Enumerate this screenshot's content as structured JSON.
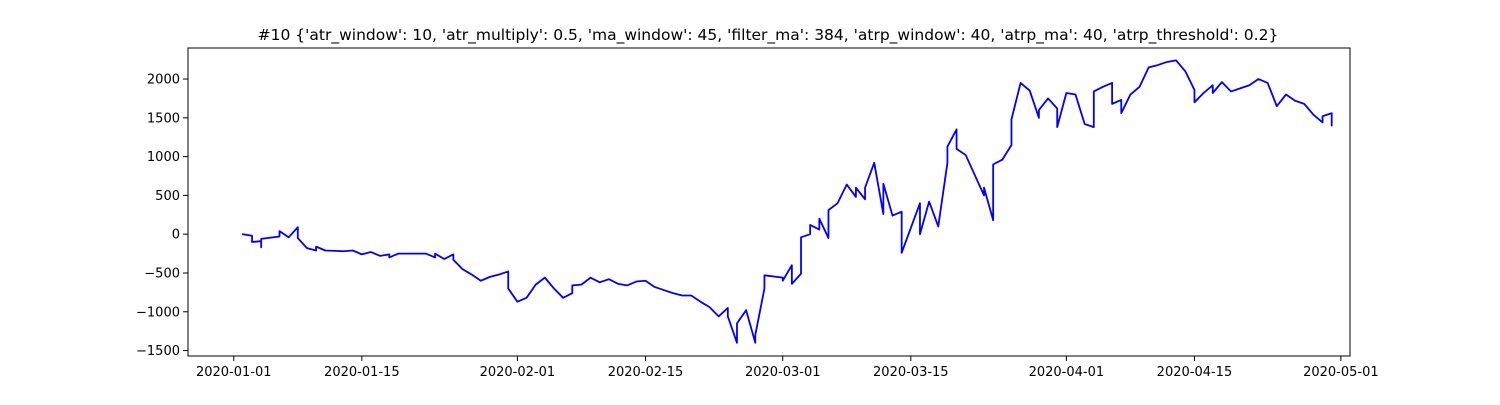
{
  "chart_data": {
    "type": "line",
    "title": "#10 {'atr_window': 10, 'atr_multiply': 0.5, 'ma_window': 45, 'filter_ma': 384, 'atrp_window': 40, 'atrp_ma': 40, 'atrp_threshold': 0.2}",
    "xlabel": "",
    "ylabel": "",
    "xlim": [
      "2019-12-27",
      "2020-05-02"
    ],
    "ylim": [
      -1570,
      2400
    ],
    "x_ticks": [
      "2020-01-01",
      "2020-01-15",
      "2020-02-01",
      "2020-02-15",
      "2020-03-01",
      "2020-03-15",
      "2020-04-01",
      "2020-04-15",
      "2020-05-01"
    ],
    "y_ticks": [
      -1500,
      -1000,
      -500,
      0,
      500,
      1000,
      1500,
      2000
    ],
    "grid": false,
    "legend": "none",
    "line_color": "#0000ff",
    "series": [
      {
        "name": "",
        "points": [
          [
            "2020-01-02",
            0
          ],
          [
            "2020-01-03",
            -20
          ],
          [
            "2020-01-03",
            -100
          ],
          [
            "2020-01-04",
            -90
          ],
          [
            "2020-01-04",
            -170
          ],
          [
            "2020-01-04",
            -60
          ],
          [
            "2020-01-06",
            -30
          ],
          [
            "2020-01-06",
            40
          ],
          [
            "2020-01-07",
            -40
          ],
          [
            "2020-01-08",
            90
          ],
          [
            "2020-01-08",
            -50
          ],
          [
            "2020-01-09",
            -180
          ],
          [
            "2020-01-10",
            -210
          ],
          [
            "2020-01-10",
            -160
          ],
          [
            "2020-01-11",
            -210
          ],
          [
            "2020-01-13",
            -220
          ],
          [
            "2020-01-14",
            -210
          ],
          [
            "2020-01-15",
            -260
          ],
          [
            "2020-01-16",
            -230
          ],
          [
            "2020-01-17",
            -280
          ],
          [
            "2020-01-18",
            -260
          ],
          [
            "2020-01-18",
            -300
          ],
          [
            "2020-01-19",
            -250
          ],
          [
            "2020-01-21",
            -250
          ],
          [
            "2020-01-22",
            -250
          ],
          [
            "2020-01-23",
            -300
          ],
          [
            "2020-01-23",
            -250
          ],
          [
            "2020-01-24",
            -320
          ],
          [
            "2020-01-25",
            -260
          ],
          [
            "2020-01-25",
            -330
          ],
          [
            "2020-01-26",
            -450
          ],
          [
            "2020-01-27",
            -520
          ],
          [
            "2020-01-28",
            -600
          ],
          [
            "2020-01-29",
            -550
          ],
          [
            "2020-01-30",
            -520
          ],
          [
            "2020-01-31",
            -480
          ],
          [
            "2020-01-31",
            -560
          ],
          [
            "2020-01-31",
            -700
          ],
          [
            "2020-02-01",
            -870
          ],
          [
            "2020-02-02",
            -820
          ],
          [
            "2020-02-03",
            -650
          ],
          [
            "2020-02-04",
            -560
          ],
          [
            "2020-02-05",
            -700
          ],
          [
            "2020-02-06",
            -820
          ],
          [
            "2020-02-07",
            -760
          ],
          [
            "2020-02-07",
            -660
          ],
          [
            "2020-02-08",
            -650
          ],
          [
            "2020-02-09",
            -560
          ],
          [
            "2020-02-10",
            -620
          ],
          [
            "2020-02-11",
            -580
          ],
          [
            "2020-02-12",
            -640
          ],
          [
            "2020-02-13",
            -660
          ],
          [
            "2020-02-14",
            -610
          ],
          [
            "2020-02-15",
            -600
          ],
          [
            "2020-02-16",
            -680
          ],
          [
            "2020-02-17",
            -720
          ],
          [
            "2020-02-18",
            -760
          ],
          [
            "2020-02-19",
            -790
          ],
          [
            "2020-02-20",
            -790
          ],
          [
            "2020-02-21",
            -870
          ],
          [
            "2020-02-22",
            -940
          ],
          [
            "2020-02-23",
            -1060
          ],
          [
            "2020-02-24",
            -950
          ],
          [
            "2020-02-24",
            -1060
          ],
          [
            "2020-02-25",
            -1400
          ],
          [
            "2020-02-25",
            -1150
          ],
          [
            "2020-02-26",
            -980
          ],
          [
            "2020-02-27",
            -1400
          ],
          [
            "2020-02-27",
            -1300
          ],
          [
            "2020-02-28",
            -700
          ],
          [
            "2020-02-28",
            -530
          ],
          [
            "2020-03-01",
            -560
          ],
          [
            "2020-03-01",
            -600
          ],
          [
            "2020-03-02",
            -400
          ],
          [
            "2020-03-02",
            -640
          ],
          [
            "2020-03-03",
            -510
          ],
          [
            "2020-03-03",
            -40
          ],
          [
            "2020-03-04",
            0
          ],
          [
            "2020-03-04",
            120
          ],
          [
            "2020-03-05",
            60
          ],
          [
            "2020-03-05",
            200
          ],
          [
            "2020-03-06",
            -50
          ],
          [
            "2020-03-06",
            310
          ],
          [
            "2020-03-07",
            400
          ],
          [
            "2020-03-08",
            640
          ],
          [
            "2020-03-09",
            480
          ],
          [
            "2020-03-09",
            600
          ],
          [
            "2020-03-10",
            450
          ],
          [
            "2020-03-10",
            600
          ],
          [
            "2020-03-11",
            920
          ],
          [
            "2020-03-12",
            260
          ],
          [
            "2020-03-12",
            650
          ],
          [
            "2020-03-13",
            240
          ],
          [
            "2020-03-14",
            290
          ],
          [
            "2020-03-14",
            -240
          ],
          [
            "2020-03-16",
            400
          ],
          [
            "2020-03-16",
            0
          ],
          [
            "2020-03-17",
            420
          ],
          [
            "2020-03-18",
            100
          ],
          [
            "2020-03-19",
            920
          ],
          [
            "2020-03-19",
            1130
          ],
          [
            "2020-03-20",
            1350
          ],
          [
            "2020-03-20",
            1100
          ],
          [
            "2020-03-21",
            1020
          ],
          [
            "2020-03-23",
            500
          ],
          [
            "2020-03-23",
            600
          ],
          [
            "2020-03-24",
            180
          ],
          [
            "2020-03-24",
            900
          ],
          [
            "2020-03-25",
            960
          ],
          [
            "2020-03-26",
            1150
          ],
          [
            "2020-03-26",
            1480
          ],
          [
            "2020-03-27",
            1950
          ],
          [
            "2020-03-28",
            1850
          ],
          [
            "2020-03-29",
            1500
          ],
          [
            "2020-03-29",
            1600
          ],
          [
            "2020-03-30",
            1750
          ],
          [
            "2020-03-31",
            1620
          ],
          [
            "2020-03-31",
            1380
          ],
          [
            "2020-04-01",
            1820
          ],
          [
            "2020-04-02",
            1800
          ],
          [
            "2020-04-03",
            1420
          ],
          [
            "2020-04-04",
            1380
          ],
          [
            "2020-04-04",
            1840
          ],
          [
            "2020-04-05",
            1900
          ],
          [
            "2020-04-06",
            1950
          ],
          [
            "2020-04-06",
            1680
          ],
          [
            "2020-04-07",
            1730
          ],
          [
            "2020-04-07",
            1560
          ],
          [
            "2020-04-08",
            1800
          ],
          [
            "2020-04-09",
            1900
          ],
          [
            "2020-04-10",
            2150
          ],
          [
            "2020-04-11",
            2180
          ],
          [
            "2020-04-12",
            2220
          ],
          [
            "2020-04-13",
            2240
          ],
          [
            "2020-04-14",
            2100
          ],
          [
            "2020-04-15",
            1860
          ],
          [
            "2020-04-15",
            1700
          ],
          [
            "2020-04-16",
            1820
          ],
          [
            "2020-04-17",
            1920
          ],
          [
            "2020-04-17",
            1820
          ],
          [
            "2020-04-18",
            1960
          ],
          [
            "2020-04-19",
            1840
          ],
          [
            "2020-04-20",
            1880
          ],
          [
            "2020-04-21",
            1920
          ],
          [
            "2020-04-22",
            2000
          ],
          [
            "2020-04-23",
            1950
          ],
          [
            "2020-04-24",
            1650
          ],
          [
            "2020-04-25",
            1800
          ],
          [
            "2020-04-26",
            1720
          ],
          [
            "2020-04-27",
            1680
          ],
          [
            "2020-04-28",
            1540
          ],
          [
            "2020-04-29",
            1440
          ],
          [
            "2020-04-29",
            1520
          ],
          [
            "2020-04-30",
            1560
          ],
          [
            "2020-04-30",
            1400
          ]
        ]
      }
    ]
  }
}
